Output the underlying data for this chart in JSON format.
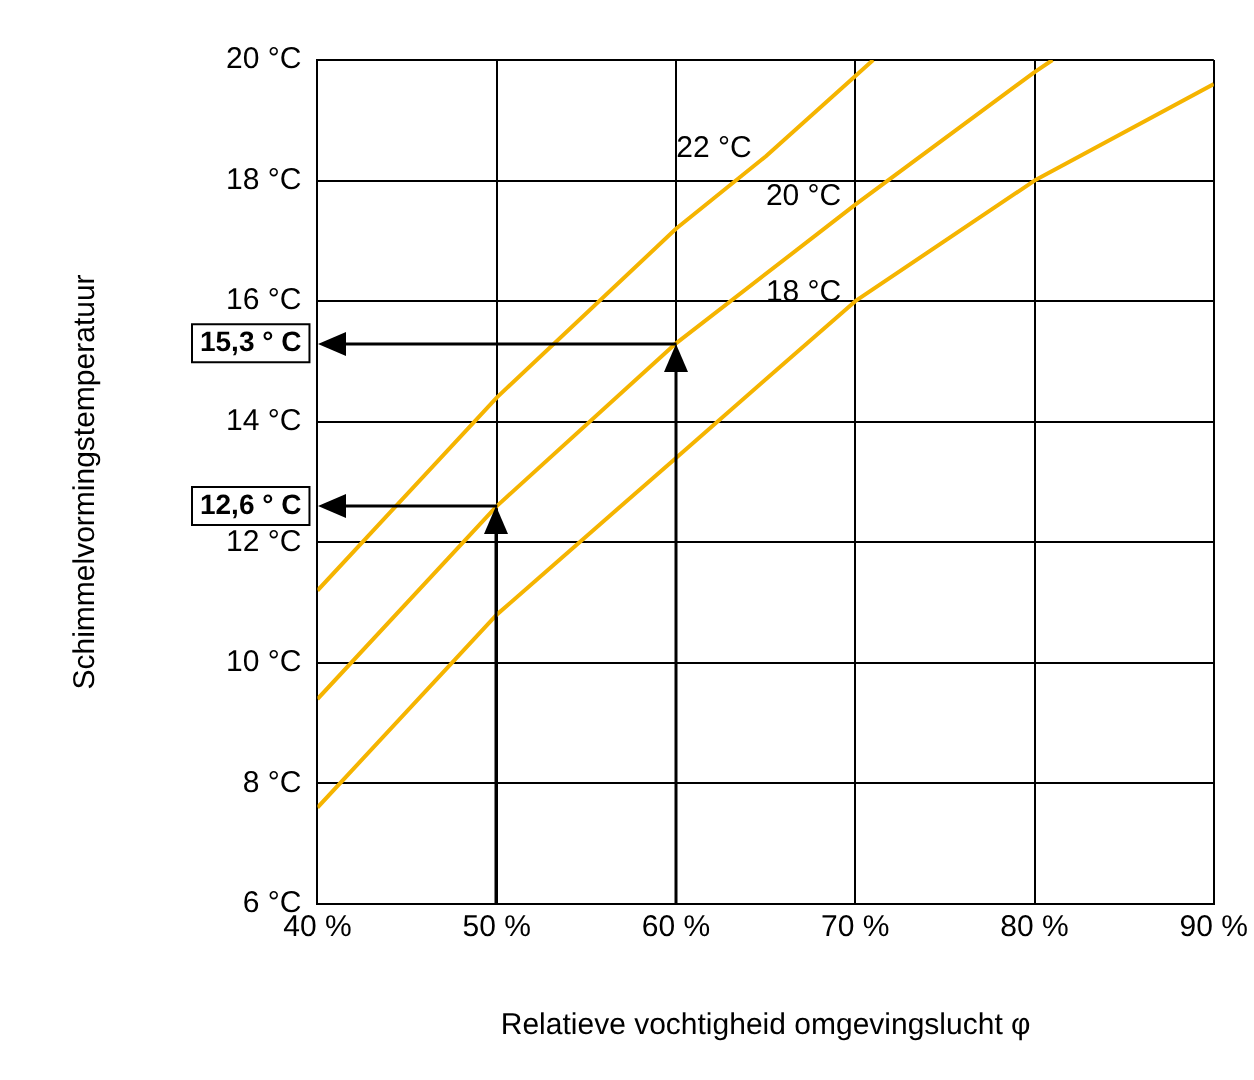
{
  "chart_data": {
    "type": "line",
    "xlabel": "Relatieve vochtigheid omgevingslucht φ",
    "ylabel": "Schimmelvormingstemperatuur",
    "series": [
      {
        "name": "18 °C",
        "color": "#f5b400",
        "x": [
          40,
          50,
          60,
          70,
          80,
          90
        ],
        "values": [
          7.6,
          10.8,
          13.4,
          16.0,
          18.0,
          19.6
        ]
      },
      {
        "name": "20 °C",
        "color": "#f5b400",
        "x": [
          40,
          50,
          60,
          70,
          80,
          81
        ],
        "values": [
          9.4,
          12.6,
          15.3,
          17.6,
          19.8,
          20
        ]
      },
      {
        "name": "22 °C",
        "color": "#f5b400",
        "x": [
          40,
          50,
          60,
          65,
          71
        ],
        "values": [
          11.2,
          14.4,
          17.2,
          18.4,
          20
        ]
      }
    ],
    "xlim": [
      40,
      90
    ],
    "ylim": [
      6,
      20
    ],
    "xticks": [
      {
        "value": 40,
        "label": "40 %"
      },
      {
        "value": 50,
        "label": "50 %"
      },
      {
        "value": 60,
        "label": "60 %"
      },
      {
        "value": 70,
        "label": "70 %"
      },
      {
        "value": 80,
        "label": "80 %"
      },
      {
        "value": 90,
        "label": "90 %"
      }
    ],
    "yticks": [
      {
        "value": 6,
        "label": "6 °C"
      },
      {
        "value": 8,
        "label": "8 °C"
      },
      {
        "value": 10,
        "label": "10 °C"
      },
      {
        "value": 12,
        "label": "12 °C"
      },
      {
        "value": 12.6,
        "label": "12,6 ° C"
      },
      {
        "value": 14,
        "label": "14 °C"
      },
      {
        "value": 15.3,
        "label": "15,3 ° C"
      },
      {
        "value": 16,
        "label": "16 °C"
      },
      {
        "value": 18,
        "label": "18 °C"
      },
      {
        "value": 20,
        "label": "20 °C"
      }
    ],
    "grid": true,
    "legend": false,
    "marker": "none",
    "line_style": "solid"
  }
}
